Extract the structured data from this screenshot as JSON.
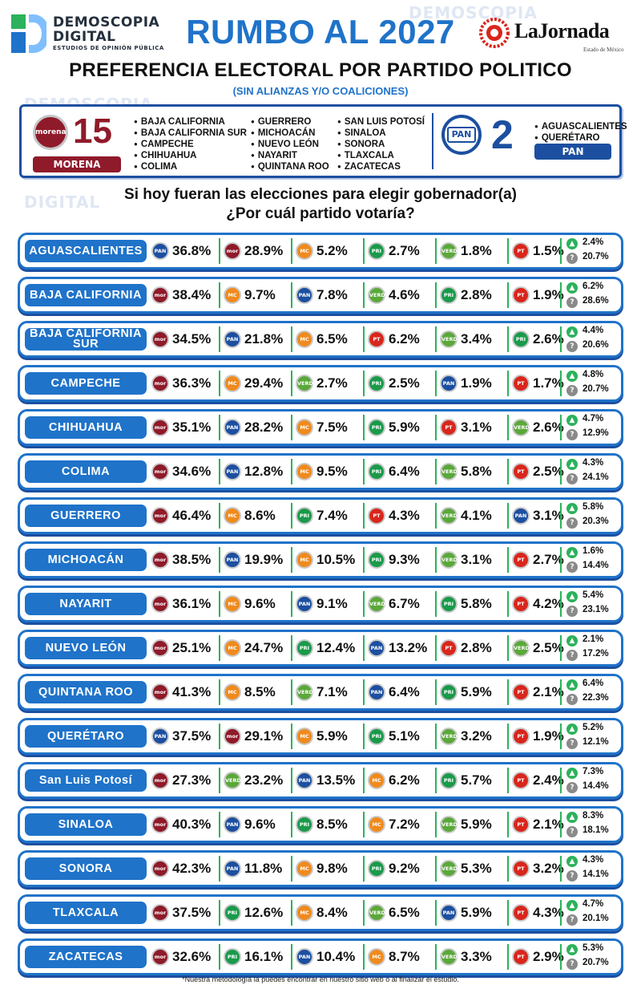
{
  "brand": {
    "left_logo_line1": "DEMOSCOPIA",
    "left_logo_line2": "DIGITAL",
    "left_logo_line3": "ESTUDIOS DE OPINIÓN PÚBLICA",
    "right_logo": "LaJornada",
    "right_logo_sub": "Estado de México"
  },
  "title": "RUMBO AL 2027",
  "subtitle": "PREFERENCIA ELECTORAL POR PARTIDO POLITICO",
  "subtitle_note": "(SIN ALIANZAS Y/O COALICIONES)",
  "governors": {
    "morena": {
      "logo_text": "morena",
      "count": "15",
      "label": "MORENA",
      "states_col1": [
        "BAJA CALIFORNIA",
        "BAJA CALIFORNIA SUR",
        "CAMPECHE",
        "CHIHUAHUA",
        "COLIMA"
      ],
      "states_col2": [
        "GUERRERO",
        "MICHOACÁN",
        "NUEVO LEÓN",
        "NAYARIT",
        "QUINTANA ROO"
      ],
      "states_col3": [
        "SAN LUIS POTOSÍ",
        "SINALOA",
        "SONORA",
        "TLAXCALA",
        "ZACATECAS"
      ]
    },
    "pan": {
      "logo_text": "PAN",
      "count": "2",
      "label": "PAN",
      "states": [
        "AGUASCALIENTES",
        "QUERÉTARO"
      ]
    }
  },
  "question_line1": "Si hoy fueran las elecciones para elegir gobernador(a)",
  "question_line2": "¿Por cuál partido votaría?",
  "party_colors": {
    "PAN": "#1c4fa0",
    "MORENA": "#8f1a2a",
    "MC": "#f08a1d",
    "PRI": "#1a9a4b",
    "PVEM": "#5aa83a",
    "PT": "#d9261c"
  },
  "party_logo_text": {
    "PAN": "PAN",
    "MORENA": "mor",
    "MC": "MC",
    "PRI": "PRI",
    "PVEM": "VERDE",
    "PT": "PT"
  },
  "rows": [
    {
      "state": "AGUASCALIENTES",
      "results": [
        [
          "PAN",
          "36.8%"
        ],
        [
          "MORENA",
          "28.9%"
        ],
        [
          "MC",
          "5.2%"
        ],
        [
          "PRI",
          "2.7%"
        ],
        [
          "PVEM",
          "1.8%"
        ],
        [
          "PT",
          "1.5%"
        ]
      ],
      "other": "2.4%",
      "undecided": "20.7%"
    },
    {
      "state": "BAJA CALIFORNIA",
      "results": [
        [
          "MORENA",
          "38.4%"
        ],
        [
          "MC",
          "9.7%"
        ],
        [
          "PAN",
          "7.8%"
        ],
        [
          "PVEM",
          "4.6%"
        ],
        [
          "PRI",
          "2.8%"
        ],
        [
          "PT",
          "1.9%"
        ]
      ],
      "other": "6.2%",
      "undecided": "28.6%"
    },
    {
      "state": "BAJA CALIFORNIA SUR",
      "results": [
        [
          "MORENA",
          "34.5%"
        ],
        [
          "PAN",
          "21.8%"
        ],
        [
          "MC",
          "6.5%"
        ],
        [
          "PT",
          "6.2%"
        ],
        [
          "PVEM",
          "3.4%"
        ],
        [
          "PRI",
          "2.6%"
        ]
      ],
      "other": "4.4%",
      "undecided": "20.6%"
    },
    {
      "state": "CAMPECHE",
      "results": [
        [
          "MORENA",
          "36.3%"
        ],
        [
          "MC",
          "29.4%"
        ],
        [
          "PVEM",
          "2.7%"
        ],
        [
          "PRI",
          "2.5%"
        ],
        [
          "PAN",
          "1.9%"
        ],
        [
          "PT",
          "1.7%"
        ]
      ],
      "other": "4.8%",
      "undecided": "20.7%"
    },
    {
      "state": "CHIHUAHUA",
      "results": [
        [
          "MORENA",
          "35.1%"
        ],
        [
          "PAN",
          "28.2%"
        ],
        [
          "MC",
          "7.5%"
        ],
        [
          "PRI",
          "5.9%"
        ],
        [
          "PT",
          "3.1%"
        ],
        [
          "PVEM",
          "2.6%"
        ]
      ],
      "other": "4.7%",
      "undecided": "12.9%"
    },
    {
      "state": "COLIMA",
      "results": [
        [
          "MORENA",
          "34.6%"
        ],
        [
          "PAN",
          "12.8%"
        ],
        [
          "MC",
          "9.5%"
        ],
        [
          "PRI",
          "6.4%"
        ],
        [
          "PVEM",
          "5.8%"
        ],
        [
          "PT",
          "2.5%"
        ]
      ],
      "other": "4.3%",
      "undecided": "24.1%"
    },
    {
      "state": "GUERRERO",
      "results": [
        [
          "MORENA",
          "46.4%"
        ],
        [
          "MC",
          "8.6%"
        ],
        [
          "PRI",
          "7.4%"
        ],
        [
          "PT",
          "4.3%"
        ],
        [
          "PVEM",
          "4.1%"
        ],
        [
          "PAN",
          "3.1%"
        ]
      ],
      "other": "5.8%",
      "undecided": "20.3%"
    },
    {
      "state": "MICHOACÁN",
      "results": [
        [
          "MORENA",
          "38.5%"
        ],
        [
          "PAN",
          "19.9%"
        ],
        [
          "MC",
          "10.5%"
        ],
        [
          "PRI",
          "9.3%"
        ],
        [
          "PVEM",
          "3.1%"
        ],
        [
          "PT",
          "2.7%"
        ]
      ],
      "other": "1.6%",
      "undecided": "14.4%"
    },
    {
      "state": "NAYARIT",
      "results": [
        [
          "MORENA",
          "36.1%"
        ],
        [
          "MC",
          "9.6%"
        ],
        [
          "PAN",
          "9.1%"
        ],
        [
          "PVEM",
          "6.7%"
        ],
        [
          "PRI",
          "5.8%"
        ],
        [
          "PT",
          "4.2%"
        ]
      ],
      "other": "5.4%",
      "undecided": "23.1%"
    },
    {
      "state": "NUEVO LEÓN",
      "results": [
        [
          "MORENA",
          "25.1%"
        ],
        [
          "MC",
          "24.7%"
        ],
        [
          "PRI",
          "12.4%"
        ],
        [
          "PAN",
          "13.2%"
        ],
        [
          "PT",
          "2.8%"
        ],
        [
          "PVEM",
          "2.5%"
        ]
      ],
      "other": "2.1%",
      "undecided": "17.2%"
    },
    {
      "state": "QUINTANA ROO",
      "results": [
        [
          "MORENA",
          "41.3%"
        ],
        [
          "MC",
          "8.5%"
        ],
        [
          "PVEM",
          "7.1%"
        ],
        [
          "PAN",
          "6.4%"
        ],
        [
          "PRI",
          "5.9%"
        ],
        [
          "PT",
          "2.1%"
        ]
      ],
      "other": "6.4%",
      "undecided": "22.3%"
    },
    {
      "state": "QUERÉTARO",
      "results": [
        [
          "PAN",
          "37.5%"
        ],
        [
          "MORENA",
          "29.1%"
        ],
        [
          "MC",
          "5.9%"
        ],
        [
          "PRI",
          "5.1%"
        ],
        [
          "PVEM",
          "3.2%"
        ],
        [
          "PT",
          "1.9%"
        ]
      ],
      "other": "5.2%",
      "undecided": "12.1%"
    },
    {
      "state": "San Luis Potosí",
      "results": [
        [
          "MORENA",
          "27.3%"
        ],
        [
          "PVEM",
          "23.2%"
        ],
        [
          "PAN",
          "13.5%"
        ],
        [
          "MC",
          "6.2%"
        ],
        [
          "PRI",
          "5.7%"
        ],
        [
          "PT",
          "2.4%"
        ]
      ],
      "other": "7.3%",
      "undecided": "14.4%"
    },
    {
      "state": "SINALOA",
      "results": [
        [
          "MORENA",
          "40.3%"
        ],
        [
          "PAN",
          "9.6%"
        ],
        [
          "PRI",
          "8.5%"
        ],
        [
          "MC",
          "7.2%"
        ],
        [
          "PVEM",
          "5.9%"
        ],
        [
          "PT",
          "2.1%"
        ]
      ],
      "other": "8.3%",
      "undecided": "18.1%"
    },
    {
      "state": "SONORA",
      "results": [
        [
          "MORENA",
          "42.3%"
        ],
        [
          "PAN",
          "11.8%"
        ],
        [
          "MC",
          "9.8%"
        ],
        [
          "PRI",
          "9.2%"
        ],
        [
          "PVEM",
          "5.3%"
        ],
        [
          "PT",
          "3.2%"
        ]
      ],
      "other": "4.3%",
      "undecided": "14.1%"
    },
    {
      "state": "TLAXCALA",
      "results": [
        [
          "MORENA",
          "37.5%"
        ],
        [
          "PRI",
          "12.6%"
        ],
        [
          "MC",
          "8.4%"
        ],
        [
          "PVEM",
          "6.5%"
        ],
        [
          "PAN",
          "5.9%"
        ],
        [
          "PT",
          "4.3%"
        ]
      ],
      "other": "4.7%",
      "undecided": "20.1%"
    },
    {
      "state": "ZACATECAS",
      "results": [
        [
          "MORENA",
          "32.6%"
        ],
        [
          "PRI",
          "16.1%"
        ],
        [
          "PAN",
          "10.4%"
        ],
        [
          "MC",
          "8.7%"
        ],
        [
          "PVEM",
          "3.3%"
        ],
        [
          "PT",
          "2.9%"
        ]
      ],
      "other": "5.3%",
      "undecided": "20.7%"
    }
  ],
  "footnote": "*Nuestra metodología la puedes encontrar en nuestro sitio web o al finalizar el estudio."
}
